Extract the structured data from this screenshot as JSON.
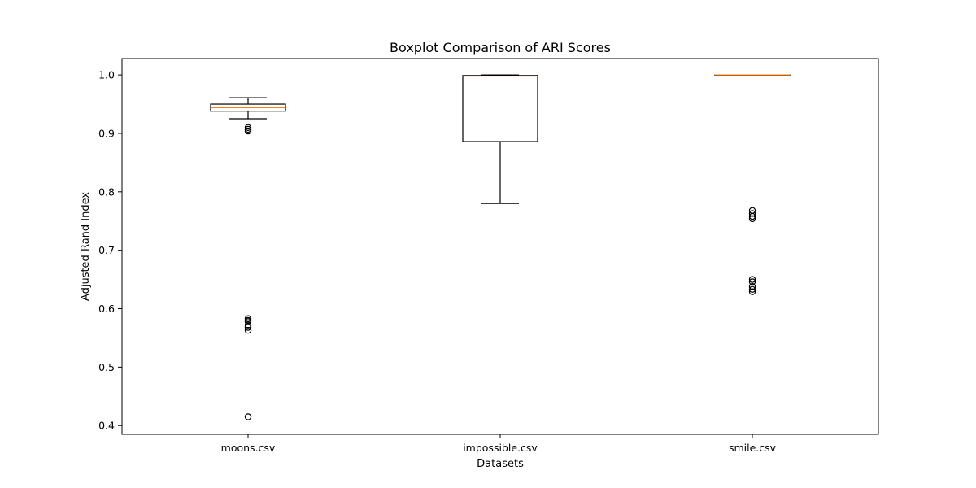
{
  "chart_data": {
    "type": "boxplot",
    "title": "Boxplot Comparison of ARI Scores",
    "xlabel": "Datasets",
    "ylabel": "Adjusted Rand Index",
    "ylim": [
      0.385,
      1.028
    ],
    "yticks": [
      0.4,
      0.5,
      0.6,
      0.7,
      0.8,
      0.9,
      1.0
    ],
    "ytick_labels": [
      "0.4",
      "0.5",
      "0.6",
      "0.7",
      "0.8",
      "0.9",
      "1.0"
    ],
    "grid": false,
    "colors": {
      "box": "#000000",
      "median": "#ff7f0e",
      "background": "#ffffff"
    },
    "categories": [
      "moons.csv",
      "impossible.csv",
      "smile.csv"
    ],
    "boxes": [
      {
        "label": "moons.csv",
        "whislo": 0.925,
        "q1": 0.938,
        "med": 0.944,
        "q3": 0.95,
        "whishi": 0.961,
        "fliers": [
          0.91,
          0.907,
          0.904,
          0.583,
          0.58,
          0.578,
          0.572,
          0.568,
          0.563,
          0.415
        ]
      },
      {
        "label": "impossible.csv",
        "whislo": 0.78,
        "q1": 0.886,
        "med": 0.998,
        "q3": 0.999,
        "whishi": 1.0,
        "fliers": []
      },
      {
        "label": "smile.csv",
        "whislo": 1.0,
        "q1": 1.0,
        "med": 1.0,
        "q3": 1.0,
        "whishi": 1.0,
        "fliers": [
          0.768,
          0.763,
          0.758,
          0.754,
          0.65,
          0.646,
          0.638,
          0.633,
          0.629
        ]
      }
    ]
  }
}
